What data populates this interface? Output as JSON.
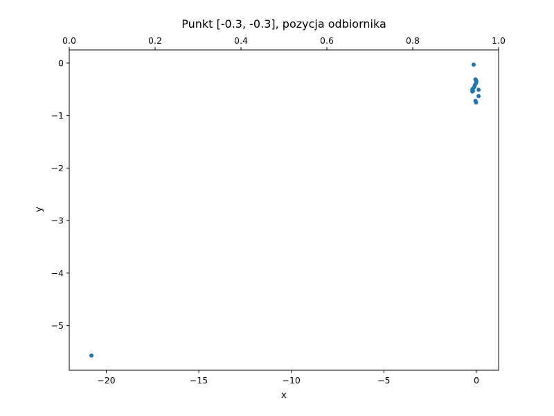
{
  "chart_data": {
    "type": "scatter",
    "title": "Punkt [-0.3, -0.3], pozycja odbiornika",
    "xlabel": "x",
    "ylabel": "y",
    "xlim": [
      -22.0,
      1.2
    ],
    "ylim": [
      -5.85,
      0.25
    ],
    "x_ticks": [
      -20,
      -15,
      -10,
      -5,
      0
    ],
    "x_tick_labels": [
      "−20",
      "−15",
      "−10",
      "−5",
      "0"
    ],
    "y_ticks": [
      0,
      -1,
      -2,
      -3,
      -4,
      -5
    ],
    "y_tick_labels": [
      "0",
      "−1",
      "−2",
      "−3",
      "−4",
      "−5"
    ],
    "top_axis": {
      "lim": [
        0.0,
        1.0
      ],
      "ticks": [
        0.0,
        0.2,
        0.4,
        0.6,
        0.8,
        1.0
      ],
      "tick_labels": [
        "0.0",
        "0.2",
        "0.4",
        "0.6",
        "0.8",
        "1.0"
      ]
    },
    "grid": false,
    "marker_color": "#1f77b4",
    "points": [
      {
        "x": -0.15,
        "y": -0.03
      },
      {
        "x": -0.05,
        "y": -0.31
      },
      {
        "x": -0.02,
        "y": -0.33
      },
      {
        "x": 0.0,
        "y": -0.35
      },
      {
        "x": -0.02,
        "y": -0.38
      },
      {
        "x": -0.08,
        "y": -0.42
      },
      {
        "x": -0.12,
        "y": -0.46
      },
      {
        "x": -0.22,
        "y": -0.5
      },
      {
        "x": 0.12,
        "y": -0.51
      },
      {
        "x": -0.22,
        "y": -0.54
      },
      {
        "x": -0.18,
        "y": -0.53
      },
      {
        "x": 0.12,
        "y": -0.63
      },
      {
        "x": -0.05,
        "y": -0.72
      },
      {
        "x": -0.02,
        "y": -0.75
      },
      {
        "x": -20.8,
        "y": -5.57
      }
    ]
  }
}
